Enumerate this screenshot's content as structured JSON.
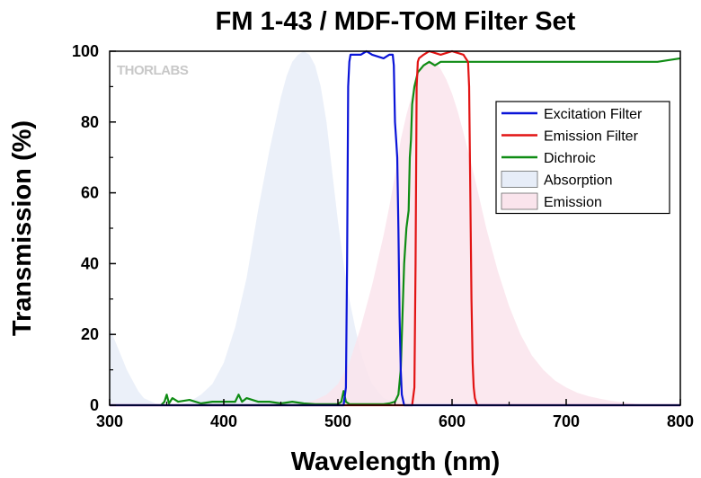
{
  "chart_data": {
    "type": "line",
    "title": "FM 1-43 / MDF-TOM Filter Set",
    "xlabel": "Wavelength (nm)",
    "ylabel": "Transmission (%)",
    "xlim": [
      300,
      800
    ],
    "ylim": [
      0,
      100
    ],
    "xticks": [
      300,
      400,
      500,
      600,
      700,
      800
    ],
    "yticks": [
      0,
      20,
      40,
      60,
      80,
      100
    ],
    "watermark": "THORLABS",
    "legend_position": "top-right",
    "series": [
      {
        "name": "Excitation Filter",
        "kind": "line",
        "color": "#0a14d8",
        "x": [
          300,
          505,
          507,
          508,
          509,
          510,
          511,
          520,
          525,
          530,
          540,
          545,
          548,
          549,
          550,
          551,
          552,
          553,
          554,
          555,
          556,
          558,
          560,
          800
        ],
        "y": [
          0,
          0,
          5,
          40,
          90,
          97,
          99,
          99,
          100,
          99,
          98,
          99,
          99,
          96,
          80,
          75,
          70,
          50,
          25,
          10,
          3,
          0,
          0,
          0
        ]
      },
      {
        "name": "Emission Filter",
        "kind": "line",
        "color": "#e21414",
        "x": [
          300,
          565,
          567,
          568,
          569,
          570,
          571,
          575,
          580,
          590,
          600,
          610,
          612,
          614,
          615,
          616,
          617,
          618,
          619,
          620,
          622,
          800
        ],
        "y": [
          0,
          0,
          5,
          40,
          90,
          97,
          98,
          99,
          100,
          99,
          100,
          99,
          98,
          97,
          90,
          60,
          30,
          12,
          5,
          2,
          0,
          0
        ]
      },
      {
        "name": "Dichroic",
        "kind": "line",
        "color": "#0f8c14",
        "x": [
          345,
          348,
          350,
          352,
          355,
          360,
          370,
          380,
          390,
          400,
          410,
          413,
          416,
          420,
          430,
          440,
          450,
          460,
          470,
          480,
          490,
          500,
          503,
          505,
          507,
          510,
          515,
          520,
          530,
          540,
          545,
          550,
          553,
          555,
          558,
          560,
          562,
          563,
          564,
          565,
          567,
          570,
          575,
          580,
          585,
          590,
          600,
          620,
          650,
          700,
          750,
          780,
          800
        ],
        "y": [
          0,
          1,
          3,
          0.5,
          2,
          1,
          1.5,
          0.5,
          1,
          1,
          1,
          3,
          1,
          2,
          1,
          1,
          0.5,
          1,
          0.5,
          0.3,
          0.3,
          0.3,
          1,
          4,
          1,
          0.3,
          0.3,
          0.3,
          0.3,
          0.3,
          0.5,
          1,
          3,
          10,
          40,
          50,
          55,
          70,
          75,
          85,
          90,
          94,
          96,
          97,
          96,
          97,
          97,
          97,
          97,
          97,
          97,
          97,
          98
        ]
      },
      {
        "name": "Absorption",
        "kind": "area",
        "color": "#e7edf8",
        "x": [
          300,
          305,
          310,
          315,
          320,
          325,
          330,
          340,
          350,
          360,
          370,
          380,
          390,
          400,
          410,
          420,
          430,
          440,
          450,
          455,
          460,
          465,
          470,
          475,
          480,
          485,
          490,
          495,
          500,
          505,
          510,
          515,
          520,
          525,
          530,
          535,
          540,
          545,
          550,
          555,
          560,
          565
        ],
        "y": [
          22,
          18,
          14,
          10,
          7,
          4,
          2,
          0.5,
          0,
          0,
          1,
          3,
          6,
          12,
          22,
          36,
          55,
          72,
          87,
          93,
          97,
          99,
          100,
          99,
          96,
          90,
          80,
          66,
          52,
          40,
          30,
          22,
          15,
          10,
          6,
          4,
          2,
          1.5,
          1,
          0.5,
          0.2,
          0
        ]
      },
      {
        "name": "Emission",
        "kind": "area",
        "color": "#fae4ec",
        "x": [
          460,
          470,
          480,
          490,
          500,
          510,
          520,
          530,
          540,
          545,
          550,
          555,
          560,
          565,
          570,
          575,
          580,
          585,
          590,
          595,
          600,
          605,
          610,
          620,
          630,
          640,
          650,
          660,
          670,
          680,
          690,
          700,
          710,
          720,
          730,
          740,
          750,
          760,
          770
        ],
        "y": [
          0,
          0.5,
          1.5,
          3,
          6,
          12,
          22,
          34,
          48,
          56,
          65,
          75,
          82,
          88,
          93,
          96,
          97,
          97,
          95,
          92,
          88,
          83,
          77,
          64,
          50,
          38,
          28,
          20,
          14,
          10,
          7,
          5,
          3.5,
          2.5,
          1.8,
          1.2,
          0.8,
          0.4,
          0
        ]
      }
    ]
  }
}
